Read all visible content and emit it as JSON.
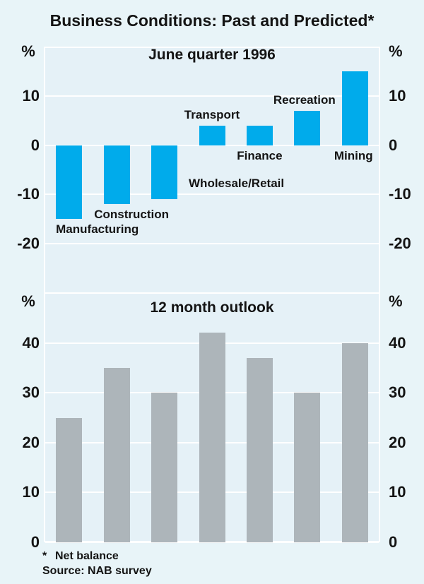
{
  "title": "Business Conditions: Past and Predicted*",
  "axis_unit": "%",
  "footnote": {
    "marker": "*",
    "text": "Net balance"
  },
  "source": "Source: NAB survey",
  "colors": {
    "background": "#e8f4f8",
    "plot_background": "#e5f1f7",
    "gridline": "#ffffff",
    "past_bar": "#00abeb",
    "outlook_bar": "#adb5ba",
    "text": "#141414"
  },
  "chart_data": [
    {
      "type": "bar",
      "title": "June quarter 1996",
      "categories": [
        "Manufacturing",
        "Construction",
        "Wholesale/Retail",
        "Transport",
        "Finance",
        "Recreation",
        "Mining"
      ],
      "values": [
        -15,
        -12,
        -11,
        4,
        4,
        7,
        15
      ],
      "xlabel": "",
      "ylabel": "%",
      "ylim": [
        -30,
        20
      ],
      "yticks": [
        10,
        0,
        -10,
        -20
      ],
      "grid": true,
      "bar_color_key": "past_bar",
      "category_labels_shown": true,
      "label_layout": [
        {
          "mode": "below-bar",
          "dx": 40
        },
        {
          "mode": "below-bar",
          "dx": 21
        },
        {
          "mode": "beside-bar",
          "dx": 102
        },
        {
          "mode": "above-bar",
          "dx": 0
        },
        {
          "mode": "below-zero",
          "dx": 0
        },
        {
          "mode": "above-bar",
          "dx": -4
        },
        {
          "mode": "below-zero",
          "dx": -2
        }
      ]
    },
    {
      "type": "bar",
      "title": "12 month outlook",
      "categories": [
        "Manufacturing",
        "Construction",
        "Wholesale/Retail",
        "Transport",
        "Finance",
        "Recreation",
        "Mining"
      ],
      "values": [
        25,
        35,
        30,
        42,
        37,
        30,
        40
      ],
      "xlabel": "",
      "ylabel": "%",
      "ylim": [
        0,
        50
      ],
      "yticks": [
        40,
        30,
        20,
        10,
        0
      ],
      "grid": true,
      "bar_color_key": "outlook_bar",
      "category_labels_shown": false
    }
  ]
}
